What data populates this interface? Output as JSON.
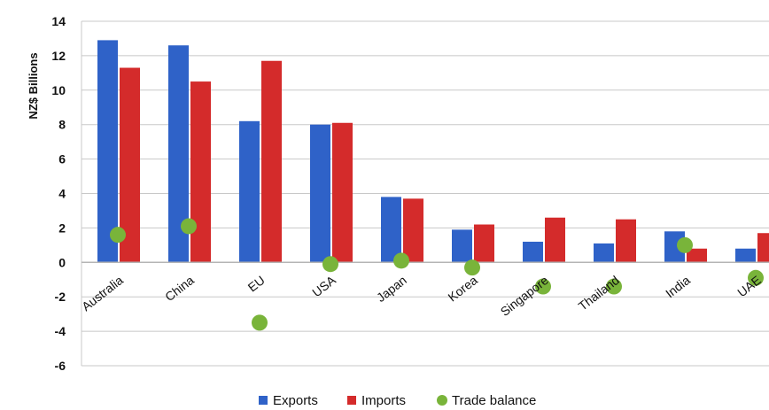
{
  "chart_data": {
    "type": "bar",
    "title": "",
    "xlabel": "",
    "ylabel": "NZ$ Billions",
    "ylim": [
      -6,
      14
    ],
    "yticks": [
      -6,
      -4,
      -2,
      0,
      2,
      4,
      6,
      8,
      10,
      12,
      14
    ],
    "grid": true,
    "legend_position": "bottom",
    "categories": [
      "Australia",
      "China",
      "EU",
      "USA",
      "Japan",
      "Korea",
      "Singapore",
      "Thailand",
      "India",
      "UAE"
    ],
    "series": [
      {
        "name": "Exports",
        "type": "bar",
        "color": "#2f62c8",
        "values": [
          12.9,
          12.6,
          8.2,
          8.0,
          3.8,
          1.9,
          1.2,
          1.1,
          1.8,
          0.8
        ]
      },
      {
        "name": "Imports",
        "type": "bar",
        "color": "#d42b2b",
        "values": [
          11.3,
          10.5,
          11.7,
          8.1,
          3.7,
          2.2,
          2.6,
          2.5,
          0.8,
          1.7
        ]
      },
      {
        "name": "Trade balance",
        "type": "scatter",
        "color": "#79b43a",
        "values": [
          1.6,
          2.1,
          -3.5,
          -0.1,
          0.1,
          -0.3,
          -1.4,
          -1.4,
          1.0,
          -0.9
        ]
      }
    ]
  }
}
